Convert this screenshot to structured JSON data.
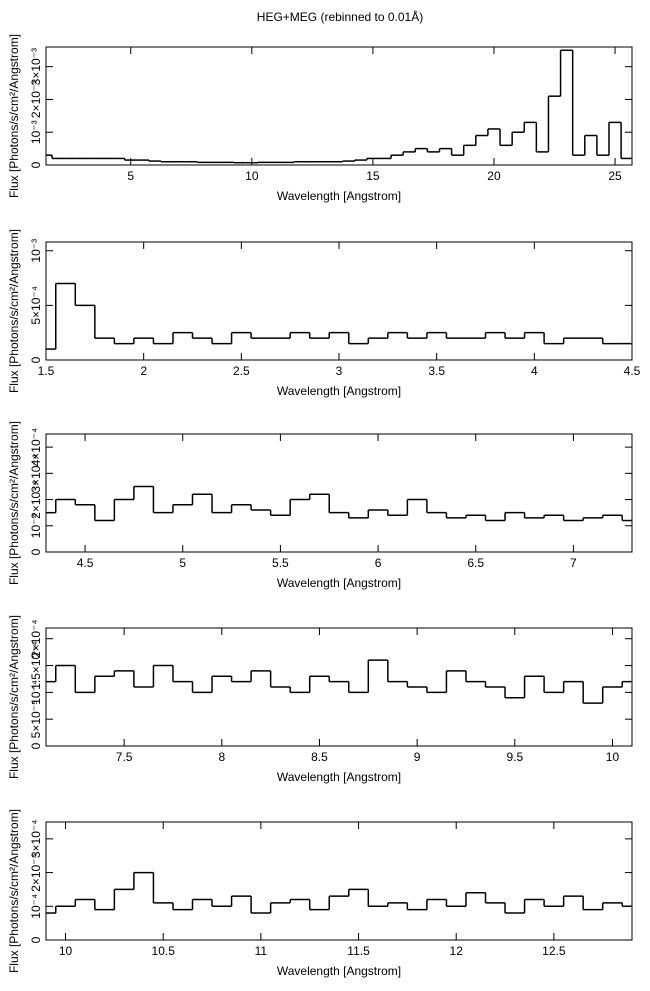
{
  "chart_data": [
    {
      "type": "line",
      "title": "HEG+MEG (rebinned to 0.01Å)",
      "xlabel": "Wavelength [Angstrom]",
      "ylabel": "Flux [Photons/s/cm²/Angstrom]",
      "color": "#000000",
      "x": [
        1.5,
        2,
        2.5,
        3,
        3.5,
        4,
        4.5,
        5,
        5.5,
        6,
        6.5,
        7,
        7.5,
        8,
        8.5,
        9,
        9.5,
        10,
        10.5,
        11,
        11.5,
        12,
        12.5,
        13,
        13.5,
        14,
        14.5,
        15,
        15.5,
        16,
        16.5,
        17,
        17.5,
        18,
        18.5,
        19,
        19.5,
        20,
        20.5,
        21,
        21.5,
        22,
        22.5,
        23,
        23.5,
        24,
        24.5,
        25,
        25.5
      ],
      "values": [
        0.0003,
        0.0002,
        0.0002,
        0.0002,
        0.0002,
        0.0002,
        0.0002,
        0.00015,
        0.00015,
        0.00012,
        0.0001,
        0.0001,
        0.0001,
        8e-05,
        8e-05,
        8e-05,
        7e-05,
        7e-05,
        8e-05,
        8e-05,
        8e-05,
        0.0001,
        0.0001,
        0.0001,
        0.0001,
        0.00012,
        0.00015,
        0.0002,
        0.0002,
        0.0003,
        0.0004,
        0.0005,
        0.0004,
        0.0005,
        0.0003,
        0.0006,
        0.0009,
        0.0011,
        0.0006,
        0.001,
        0.0013,
        0.0004,
        0.0021,
        0.0035,
        0.0003,
        0.0009,
        0.0003,
        0.0013,
        0.0002
      ],
      "xlim": [
        1.5,
        25.7
      ],
      "ylim": [
        0,
        0.0036
      ],
      "xticks": [
        5,
        10,
        15,
        20,
        25
      ],
      "yticks": [
        0,
        {
          "value": 0.001,
          "label": "10⁻³"
        },
        {
          "value": 0.002,
          "label": "2×10⁻³"
        },
        {
          "value": 0.003,
          "label": "3×10⁻³"
        }
      ]
    },
    {
      "type": "line",
      "xlabel": "Wavelength [Angstrom]",
      "ylabel": "Flux [Photons/s/cm²/Angstrom]",
      "color": "#000000",
      "x": [
        1.5,
        1.6,
        1.7,
        1.8,
        1.9,
        2.0,
        2.1,
        2.2,
        2.3,
        2.4,
        2.5,
        2.6,
        2.7,
        2.8,
        2.9,
        3.0,
        3.1,
        3.2,
        3.3,
        3.4,
        3.5,
        3.6,
        3.7,
        3.8,
        3.9,
        4.0,
        4.1,
        4.2,
        4.3,
        4.4,
        4.5
      ],
      "values": [
        0.0001,
        0.0007,
        0.0005,
        0.0002,
        0.00015,
        0.0002,
        0.00015,
        0.00025,
        0.0002,
        0.00015,
        0.00025,
        0.0002,
        0.0002,
        0.00025,
        0.0002,
        0.00025,
        0.00015,
        0.0002,
        0.00025,
        0.0002,
        0.00025,
        0.0002,
        0.0002,
        0.00025,
        0.0002,
        0.00025,
        0.00015,
        0.0002,
        0.0002,
        0.00015,
        0.00015
      ],
      "xlim": [
        1.5,
        4.5
      ],
      "ylim": [
        0,
        0.00108
      ],
      "xticks": [
        1.5,
        2,
        2.5,
        3,
        3.5,
        4,
        4.5
      ],
      "yticks": [
        0,
        {
          "value": 0.0005,
          "label": "5×10⁻⁴"
        },
        {
          "value": 0.001,
          "label": "10⁻³"
        }
      ]
    },
    {
      "type": "line",
      "xlabel": "Wavelength [Angstrom]",
      "ylabel": "Flux [Photons/s/cm²/Angstrom]",
      "color": "#000000",
      "x": [
        4.3,
        4.4,
        4.5,
        4.6,
        4.7,
        4.8,
        4.9,
        5.0,
        5.1,
        5.2,
        5.3,
        5.4,
        5.5,
        5.6,
        5.7,
        5.8,
        5.9,
        6.0,
        6.1,
        6.2,
        6.3,
        6.4,
        6.5,
        6.6,
        6.7,
        6.8,
        6.9,
        7.0,
        7.1,
        7.2,
        7.3
      ],
      "values": [
        0.00015,
        0.0002,
        0.00018,
        0.00012,
        0.0002,
        0.00025,
        0.00015,
        0.00018,
        0.00022,
        0.00015,
        0.00018,
        0.00016,
        0.00014,
        0.0002,
        0.00022,
        0.00015,
        0.00013,
        0.00016,
        0.00014,
        0.0002,
        0.00015,
        0.00013,
        0.00014,
        0.00012,
        0.00015,
        0.00013,
        0.00014,
        0.00012,
        0.00013,
        0.00014,
        0.00012
      ],
      "xlim": [
        4.3,
        7.3
      ],
      "ylim": [
        0,
        0.00045
      ],
      "xticks": [
        4.5,
        5,
        5.5,
        6,
        6.5,
        7
      ],
      "yticks": [
        0,
        {
          "value": 0.0001,
          "label": "10⁻⁴"
        },
        {
          "value": 0.0002,
          "label": "2×10⁻⁴"
        },
        {
          "value": 0.0003,
          "label": "3×10⁻⁴"
        },
        {
          "value": 0.0004,
          "label": "4×10⁻⁴"
        }
      ]
    },
    {
      "type": "line",
      "xlabel": "Wavelength [Angstrom]",
      "ylabel": "Flux [Photons/s/cm²/Angstrom]",
      "color": "#000000",
      "x": [
        7.1,
        7.2,
        7.3,
        7.4,
        7.5,
        7.6,
        7.7,
        7.8,
        7.9,
        8.0,
        8.1,
        8.2,
        8.3,
        8.4,
        8.5,
        8.6,
        8.7,
        8.8,
        8.9,
        9.0,
        9.1,
        9.2,
        9.3,
        9.4,
        9.5,
        9.6,
        9.7,
        9.8,
        9.9,
        10.0,
        10.1
      ],
      "values": [
        0.00012,
        0.00015,
        0.0001,
        0.00013,
        0.00014,
        0.00011,
        0.00015,
        0.00012,
        0.0001,
        0.00013,
        0.00012,
        0.00014,
        0.00011,
        0.0001,
        0.00013,
        0.00012,
        0.0001,
        0.00016,
        0.00012,
        0.00011,
        0.0001,
        0.00014,
        0.00012,
        0.00011,
        9e-05,
        0.00013,
        0.0001,
        0.00012,
        8e-05,
        0.00011,
        0.00012
      ],
      "xlim": [
        7.1,
        10.1
      ],
      "ylim": [
        0,
        0.00022
      ],
      "xticks": [
        7.5,
        8,
        8.5,
        9,
        9.5,
        10
      ],
      "yticks": [
        0,
        {
          "value": 5e-05,
          "label": "5×10⁻⁵"
        },
        {
          "value": 0.0001,
          "label": "10⁻⁴"
        },
        {
          "value": 0.00015,
          "label": "1.5×10⁻⁴"
        },
        {
          "value": 0.0002,
          "label": "2×10⁻⁴"
        }
      ]
    },
    {
      "type": "line",
      "xlabel": "Wavelength [Angstrom]",
      "ylabel": "Flux [Photons/s/cm²/Angstrom]",
      "color": "#000000",
      "x": [
        9.9,
        10.0,
        10.1,
        10.2,
        10.3,
        10.4,
        10.5,
        10.6,
        10.7,
        10.8,
        10.9,
        11.0,
        11.1,
        11.2,
        11.3,
        11.4,
        11.5,
        11.6,
        11.7,
        11.8,
        11.9,
        12.0,
        12.1,
        12.2,
        12.3,
        12.4,
        12.5,
        12.6,
        12.7,
        12.8,
        12.9
      ],
      "values": [
        8e-05,
        0.0001,
        0.00012,
        9e-05,
        0.00015,
        0.0002,
        0.00011,
        9e-05,
        0.00012,
        0.0001,
        0.00013,
        8e-05,
        0.00011,
        0.00012,
        9e-05,
        0.00013,
        0.00015,
        0.0001,
        0.00011,
        9e-05,
        0.00012,
        0.0001,
        0.00014,
        0.00011,
        8e-05,
        0.00012,
        0.0001,
        0.00013,
        9e-05,
        0.00011,
        0.0001
      ],
      "xlim": [
        9.9,
        12.9
      ],
      "ylim": [
        0,
        0.00035
      ],
      "xticks": [
        10,
        10.5,
        11,
        11.5,
        12,
        12.5
      ],
      "yticks": [
        0,
        {
          "value": 0.0001,
          "label": "10⁻⁴"
        },
        {
          "value": 0.0002,
          "label": "2×10⁻⁴"
        },
        {
          "value": 0.0003,
          "label": "3×10⁻⁴"
        }
      ]
    }
  ]
}
